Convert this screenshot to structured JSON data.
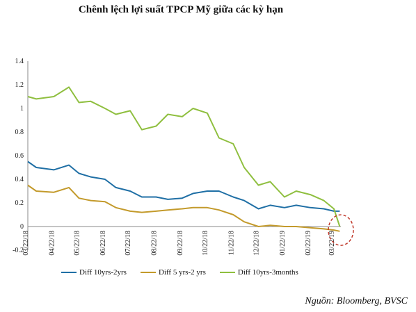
{
  "title": "Chênh lệch lợi suất TPCP Mỹ giữa các kỳ hạn",
  "source": "Nguồn: Bloomberg, BVSC",
  "colors": {
    "s1": "#1f6fa5",
    "s2": "#c39a2b",
    "s3": "#8fbf3f",
    "highlight": "#c0392b"
  },
  "chart_data": {
    "type": "line",
    "title": "Chênh lệch lợi suất TPCP Mỹ giữa các kỳ hạn",
    "xlabel": "",
    "ylabel": "",
    "ylim": [
      -0.2,
      1.4
    ],
    "yticks": [
      "-0.2",
      "0",
      "0.2",
      "0.4",
      "0.6",
      "0.8",
      "1",
      "1.2",
      "1.4"
    ],
    "xticks": [
      "03/22/18",
      "04/22/18",
      "05/22/18",
      "06/22/18",
      "07/22/18",
      "08/22/18",
      "09/22/18",
      "10/22/18",
      "11/22/18",
      "12/22/18",
      "01/22/19",
      "02/22/19",
      "03/22/19"
    ],
    "grid": false,
    "legend_position": "bottom",
    "series": [
      {
        "name": "Diff 10yrs-2yrs",
        "x": [
          "03/22/18",
          "04/01/18",
          "04/22/18",
          "05/10/18",
          "05/22/18",
          "06/05/18",
          "06/22/18",
          "07/05/18",
          "07/22/18",
          "08/05/18",
          "08/22/18",
          "09/05/18",
          "09/22/18",
          "10/05/18",
          "10/22/18",
          "11/05/18",
          "11/22/18",
          "12/05/18",
          "12/22/18",
          "01/05/19",
          "01/22/19",
          "02/05/19",
          "02/22/19",
          "03/10/19",
          "03/22/19",
          "03/29/19"
        ],
        "values": [
          0.55,
          0.5,
          0.48,
          0.52,
          0.45,
          0.42,
          0.4,
          0.33,
          0.3,
          0.25,
          0.25,
          0.23,
          0.24,
          0.28,
          0.3,
          0.3,
          0.25,
          0.22,
          0.15,
          0.18,
          0.16,
          0.18,
          0.16,
          0.15,
          0.13,
          0.13
        ]
      },
      {
        "name": "Diff 5 yrs-2 yrs",
        "x": [
          "03/22/18",
          "04/01/18",
          "04/22/18",
          "05/10/18",
          "05/22/18",
          "06/05/18",
          "06/22/18",
          "07/05/18",
          "07/22/18",
          "08/05/18",
          "08/22/18",
          "09/05/18",
          "09/22/18",
          "10/05/18",
          "10/22/18",
          "11/05/18",
          "11/22/18",
          "12/05/18",
          "12/22/18",
          "01/05/19",
          "01/22/19",
          "02/05/19",
          "02/22/19",
          "03/10/19",
          "03/22/19",
          "03/29/19"
        ],
        "values": [
          0.35,
          0.3,
          0.29,
          0.33,
          0.24,
          0.22,
          0.21,
          0.16,
          0.13,
          0.12,
          0.13,
          0.14,
          0.15,
          0.16,
          0.16,
          0.14,
          0.1,
          0.04,
          0.0,
          0.01,
          0.0,
          0.0,
          -0.01,
          -0.02,
          -0.03,
          -0.04
        ]
      },
      {
        "name": "Diff 10yrs-3months",
        "x": [
          "03/22/18",
          "04/01/18",
          "04/22/18",
          "05/10/18",
          "05/22/18",
          "06/05/18",
          "06/22/18",
          "07/05/18",
          "07/22/18",
          "08/05/18",
          "08/22/18",
          "09/05/18",
          "09/22/18",
          "10/05/18",
          "10/22/18",
          "11/05/18",
          "11/22/18",
          "12/05/18",
          "12/22/18",
          "01/05/19",
          "01/22/19",
          "02/05/19",
          "02/22/19",
          "03/10/19",
          "03/22/19",
          "03/29/19"
        ],
        "values": [
          1.1,
          1.08,
          1.1,
          1.18,
          1.05,
          1.06,
          1.0,
          0.95,
          0.98,
          0.82,
          0.85,
          0.95,
          0.93,
          1.0,
          0.96,
          0.75,
          0.7,
          0.5,
          0.35,
          0.38,
          0.25,
          0.3,
          0.27,
          0.22,
          0.15,
          0.0
        ]
      }
    ]
  }
}
